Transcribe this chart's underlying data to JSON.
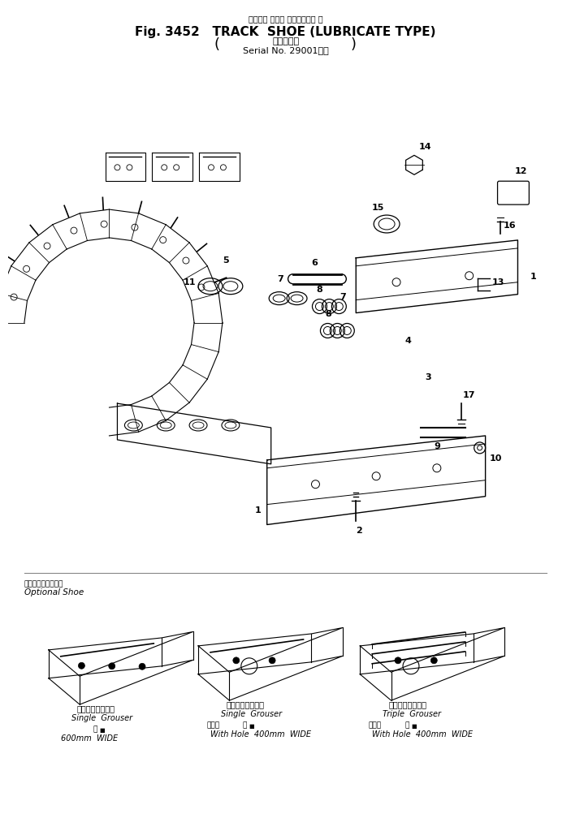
{
  "title_line1": "トラック シュー ルブリケート 型",
  "title_line2": "Fig. 3452   TRACK  SHOE (LUBRICATE TYPE)",
  "title_line3": "（適用号機",
  "title_line4": "Serial No. 29001～）",
  "optional_label_jp": "オプショナルシュー",
  "optional_label_en": "Optional Shoe",
  "shoe1_label_jp": "シングルグローサ",
  "shoe1_label_en": "Single  Grouser",
  "shoe1_size": "600mm  WIDE",
  "shoe1_size_jp": "幅",
  "shoe2_label_jp": "シングルグローサ",
  "shoe2_label_en": "Single  Grouser",
  "shoe2_note_jp": "穴あき",
  "shoe2_size": "400mm  WIDE",
  "shoe2_size_jp": "幅",
  "shoe3_label_jp": "トリプルグローサ",
  "shoe3_label_en": "Triple  Grouser",
  "shoe3_note_jp": "穴あき",
  "shoe3_size": "400mm  WIDE",
  "shoe3_size_jp": "幅",
  "bg_color": "#ffffff",
  "text_color": "#000000",
  "fig_width": 6.86,
  "fig_height": 10.09,
  "dpi": 100
}
